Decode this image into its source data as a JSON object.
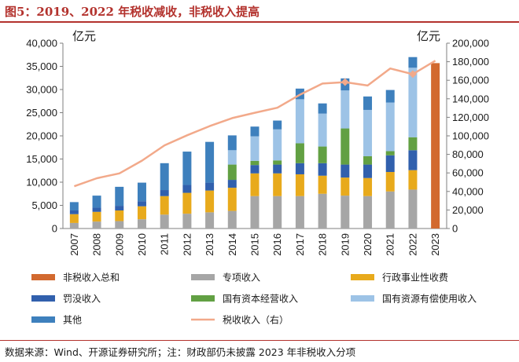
{
  "title": "图5：2019、2022 年税收减收，非税收入提高",
  "source": "数据来源：Wind、开源证券研究所；注：财政部仍未披露 2023 年非税收入分项",
  "chart_data": {
    "type": "bar",
    "stacked": true,
    "categories": [
      "2007",
      "2008",
      "2009",
      "2010",
      "2011",
      "2012",
      "2013",
      "2014",
      "2015",
      "2016",
      "2017",
      "2018",
      "2019",
      "2020",
      "2021",
      "2022",
      "2023"
    ],
    "left_axis": {
      "unit": "亿元",
      "ylim": [
        0,
        40000
      ],
      "ticks": [
        "0",
        "5,000",
        "10,000",
        "15,000",
        "20,000",
        "25,000",
        "30,000",
        "35,000",
        "40,000"
      ]
    },
    "right_axis": {
      "unit": "亿元",
      "ylim": [
        0,
        200000
      ],
      "ticks": [
        "0",
        "20,000",
        "40,000",
        "60,000",
        "80,000",
        "100,000",
        "120,000",
        "140,000",
        "160,000",
        "180,000",
        "200,000"
      ]
    },
    "colors": {
      "total": "#d2692f",
      "special": "#a6a6a6",
      "admin_fee": "#e8aa1c",
      "penalty": "#3160ad",
      "state_capital": "#62a043",
      "state_resource": "#9dc3e6",
      "other": "#3e80bd",
      "tax_line": "#f2a98a"
    },
    "series": [
      {
        "key": "total",
        "name": "非税收入总和",
        "values": [
          null,
          null,
          null,
          null,
          null,
          null,
          null,
          null,
          null,
          null,
          null,
          null,
          null,
          null,
          null,
          null,
          35700
        ]
      },
      {
        "key": "special",
        "name": "专项收入",
        "values": [
          1200,
          1500,
          1600,
          2000,
          3000,
          3200,
          3500,
          3800,
          7000,
          7000,
          7000,
          7500,
          7100,
          7000,
          8000,
          8400,
          null
        ]
      },
      {
        "key": "admin_fee",
        "name": "行政事业性收费",
        "values": [
          1900,
          2100,
          2300,
          2800,
          4000,
          4500,
          4700,
          5000,
          4900,
          4900,
          4700,
          3900,
          3900,
          3900,
          4200,
          4200,
          null
        ]
      },
      {
        "key": "penalty",
        "name": "罚没收入",
        "values": [
          800,
          900,
          1000,
          1100,
          1300,
          1700,
          1700,
          1700,
          1800,
          1900,
          2400,
          2700,
          2800,
          2900,
          3600,
          4300,
          null
        ]
      },
      {
        "key": "state_capital",
        "name": "国有资本经营收入",
        "values": [
          0,
          0,
          0,
          0,
          0,
          0,
          0,
          3300,
          900,
          900,
          4300,
          3600,
          7800,
          1800,
          900,
          2800,
          null
        ]
      },
      {
        "key": "state_resource",
        "name": "国有资源有偿使用收入",
        "values": [
          0,
          0,
          0,
          0,
          0,
          0,
          0,
          3100,
          5300,
          6700,
          9500,
          7100,
          8200,
          10000,
          10500,
          15000,
          null
        ]
      },
      {
        "key": "other",
        "name": "其他",
        "values": [
          1800,
          2600,
          4100,
          4000,
          5800,
          7200,
          8800,
          3200,
          2100,
          1900,
          2300,
          2200,
          2600,
          2900,
          2700,
          2300,
          null
        ]
      },
      {
        "key": "tax_line",
        "name": "税收收入（右）",
        "type": "line",
        "axis": "right",
        "values": [
          45622,
          54224,
          59522,
          73211,
          89738,
          100614,
          110531,
          119175,
          124922,
          130361,
          144370,
          156403,
          158000,
          154312,
          172736,
          166614,
          181129
        ]
      }
    ]
  }
}
